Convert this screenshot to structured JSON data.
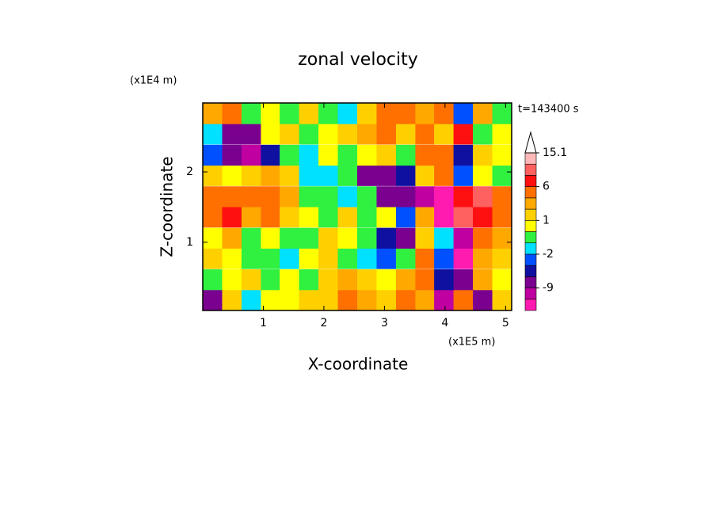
{
  "chart_data": {
    "type": "contourf",
    "title": "zonal velocity",
    "x_label": "X-coordinate",
    "y_label": "Z-coordinate",
    "x_unit": "(x1E5 m)",
    "y_unit": "(x1E4 m)",
    "annotation": "t=143400 s",
    "xlim": [
      0,
      5.1
    ],
    "ylim": [
      0.03,
      2.98
    ],
    "xticks": [
      1,
      2,
      3,
      4,
      5
    ],
    "yticks": [
      1,
      2
    ],
    "x": [
      0.16,
      0.48,
      0.8,
      1.12,
      1.43,
      1.75,
      2.07,
      2.39,
      2.71,
      3.03,
      3.35,
      3.67,
      3.98,
      4.3,
      4.62,
      4.94
    ],
    "y": [
      0.18,
      0.47,
      0.77,
      1.06,
      1.36,
      1.65,
      1.95,
      2.24,
      2.54,
      2.83
    ],
    "values": [
      [
        -6,
        2,
        -1,
        1,
        1,
        2,
        2,
        6,
        3,
        2,
        6,
        3,
        -9,
        6,
        -7,
        2
      ],
      [
        0,
        1,
        2,
        0,
        1,
        0,
        2,
        3,
        2,
        1,
        3,
        6,
        -3,
        -6,
        3,
        1
      ],
      [
        2,
        1,
        0,
        0,
        -1,
        1,
        2,
        0,
        -1,
        -2,
        0,
        6,
        -2,
        -12,
        3,
        2
      ],
      [
        1,
        3,
        0,
        1,
        0,
        0,
        2,
        1,
        0,
        -3,
        -6,
        2,
        -1,
        -9,
        6,
        3
      ],
      [
        6,
        7,
        3,
        6,
        2,
        1,
        0,
        2,
        0,
        1,
        -2,
        3,
        -12,
        12,
        9,
        6
      ],
      [
        6,
        6,
        6,
        6,
        3,
        0,
        0,
        -1,
        0,
        -7,
        -7,
        -9,
        -12,
        9,
        12,
        6
      ],
      [
        2,
        1,
        2,
        3,
        2,
        -1,
        -1,
        0,
        -6,
        -7,
        -3,
        2,
        6,
        -2,
        1,
        0
      ],
      [
        -2,
        -6,
        -9,
        -3,
        0,
        -1,
        1,
        0,
        1,
        2,
        0,
        4,
        6,
        -3,
        2,
        1
      ],
      [
        -1,
        -7,
        -7,
        1,
        2,
        0,
        1,
        2,
        3,
        6,
        2,
        6,
        2,
        9,
        0,
        1
      ],
      [
        3,
        6,
        0,
        1,
        0,
        2,
        0,
        -1,
        2,
        4,
        6,
        3,
        6,
        -2,
        3,
        0
      ]
    ],
    "levels": [
      -15,
      -12,
      -9,
      -6,
      -3,
      -2,
      -1,
      0,
      1,
      2,
      3,
      6,
      9,
      12,
      15.1
    ],
    "colors": [
      "#ff1ab0",
      "#c000a0",
      "#7a0090",
      "#1010a0",
      "#0050ff",
      "#00e0ff",
      "#30f040",
      "#ffff00",
      "#ffd000",
      "#ffa800",
      "#ff7000",
      "#ff1010",
      "#ff6060",
      "#ffb8b8"
    ],
    "colorbar_ticks": [
      15.1,
      6,
      1,
      -2,
      -9
    ]
  }
}
